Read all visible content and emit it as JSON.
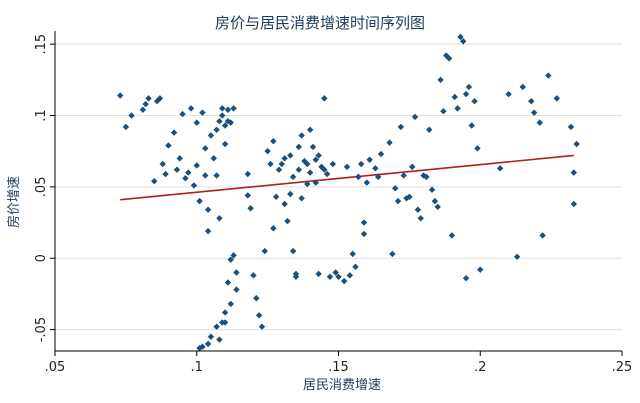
{
  "chart_data": {
    "type": "scatter",
    "title": "房价与居民消费增速时间序列图",
    "xlabel": "居民消费增速",
    "ylabel": "房价增速",
    "xlim": [
      0.05,
      0.25
    ],
    "ylim": [
      -0.065,
      0.155
    ],
    "x_ticks": [
      0.05,
      0.1,
      0.15,
      0.2,
      0.25
    ],
    "x_tick_labels": [
      ".05",
      ".1",
      ".15",
      ".2",
      ".25"
    ],
    "y_ticks": [
      -0.05,
      0,
      0.05,
      0.1,
      0.15
    ],
    "y_tick_labels": [
      "-.05",
      "0",
      ".05",
      ".1",
      ".15"
    ],
    "grid": true,
    "legend": "none",
    "colors": {
      "points": "#1c4f7a",
      "fit_line": "#b01e1e",
      "grid": "#e0e0e0",
      "axis": "#000000",
      "title": "#1c3a5c"
    },
    "points": [
      [
        0.073,
        0.114
      ],
      [
        0.075,
        0.092
      ],
      [
        0.077,
        0.1
      ],
      [
        0.081,
        0.104
      ],
      [
        0.082,
        0.108
      ],
      [
        0.083,
        0.112
      ],
      [
        0.085,
        0.054
      ],
      [
        0.086,
        0.11
      ],
      [
        0.087,
        0.112
      ],
      [
        0.088,
        0.066
      ],
      [
        0.089,
        0.059
      ],
      [
        0.09,
        0.079
      ],
      [
        0.092,
        0.088
      ],
      [
        0.093,
        0.062
      ],
      [
        0.094,
        0.07
      ],
      [
        0.095,
        0.101
      ],
      [
        0.096,
        0.056
      ],
      [
        0.097,
        0.06
      ],
      [
        0.098,
        0.105
      ],
      [
        0.099,
        0.051
      ],
      [
        0.1,
        0.095
      ],
      [
        0.1,
        0.065
      ],
      [
        0.101,
        0.04
      ],
      [
        0.102,
        0.102
      ],
      [
        0.103,
        0.077
      ],
      [
        0.103,
        0.058
      ],
      [
        0.104,
        0.034
      ],
      [
        0.104,
        0.019
      ],
      [
        0.105,
        0.086
      ],
      [
        0.106,
        0.07
      ],
      [
        0.107,
        0.09
      ],
      [
        0.107,
        0.058
      ],
      [
        0.108,
        0.096
      ],
      [
        0.108,
        0.028
      ],
      [
        0.109,
        0.1
      ],
      [
        0.109,
        0.105
      ],
      [
        0.11,
        0.093
      ],
      [
        0.11,
        0.08
      ],
      [
        0.111,
        0.104
      ],
      [
        0.111,
        0.096
      ],
      [
        0.112,
        0.095
      ],
      [
        0.113,
        0.105
      ],
      [
        0.112,
        -0.001
      ],
      [
        0.113,
        0.002
      ],
      [
        0.114,
        -0.01
      ],
      [
        0.114,
        -0.022
      ],
      [
        0.112,
        -0.032
      ],
      [
        0.11,
        -0.038
      ],
      [
        0.109,
        -0.045
      ],
      [
        0.107,
        -0.048
      ],
      [
        0.105,
        -0.055
      ],
      [
        0.104,
        -0.06
      ],
      [
        0.102,
        -0.062
      ],
      [
        0.101,
        -0.063
      ],
      [
        0.108,
        -0.057
      ],
      [
        0.11,
        -0.045
      ],
      [
        0.111,
        -0.017
      ],
      [
        0.118,
        0.059
      ],
      [
        0.118,
        0.044
      ],
      [
        0.119,
        0.035
      ],
      [
        0.12,
        -0.012
      ],
      [
        0.121,
        -0.028
      ],
      [
        0.122,
        -0.04
      ],
      [
        0.123,
        -0.048
      ],
      [
        0.124,
        0.005
      ],
      [
        0.125,
        0.075
      ],
      [
        0.126,
        0.066
      ],
      [
        0.127,
        0.082
      ],
      [
        0.127,
        0.021
      ],
      [
        0.128,
        0.043
      ],
      [
        0.129,
        0.062
      ],
      [
        0.13,
        0.066
      ],
      [
        0.131,
        0.07
      ],
      [
        0.131,
        0.038
      ],
      [
        0.132,
        0.026
      ],
      [
        0.133,
        0.072
      ],
      [
        0.133,
        0.045
      ],
      [
        0.134,
        0.057
      ],
      [
        0.134,
        0.005
      ],
      [
        0.135,
        -0.011
      ],
      [
        0.135,
        -0.013
      ],
      [
        0.136,
        0.078
      ],
      [
        0.136,
        0.062
      ],
      [
        0.137,
        0.086
      ],
      [
        0.137,
        0.042
      ],
      [
        0.138,
        0.068
      ],
      [
        0.139,
        0.052
      ],
      [
        0.139,
        0.066
      ],
      [
        0.14,
        0.09
      ],
      [
        0.14,
        0.06
      ],
      [
        0.141,
        0.078
      ],
      [
        0.142,
        0.053
      ],
      [
        0.142,
        0.069
      ],
      [
        0.143,
        0.072
      ],
      [
        0.143,
        -0.011
      ],
      [
        0.144,
        0.064
      ],
      [
        0.145,
        0.062
      ],
      [
        0.145,
        0.112
      ],
      [
        0.146,
        0.059
      ],
      [
        0.147,
        -0.013
      ],
      [
        0.148,
        0.066
      ],
      [
        0.149,
        -0.01
      ],
      [
        0.15,
        -0.013
      ],
      [
        0.152,
        -0.016
      ],
      [
        0.153,
        0.064
      ],
      [
        0.154,
        -0.012
      ],
      [
        0.155,
        0.003
      ],
      [
        0.156,
        -0.006
      ],
      [
        0.157,
        0.057
      ],
      [
        0.158,
        0.066
      ],
      [
        0.159,
        0.025
      ],
      [
        0.159,
        0.017
      ],
      [
        0.16,
        0.053
      ],
      [
        0.161,
        0.069
      ],
      [
        0.163,
        0.063
      ],
      [
        0.164,
        0.057
      ],
      [
        0.165,
        0.073
      ],
      [
        0.168,
        0.081
      ],
      [
        0.169,
        0.003
      ],
      [
        0.17,
        0.049
      ],
      [
        0.171,
        0.04
      ],
      [
        0.172,
        0.092
      ],
      [
        0.173,
        0.058
      ],
      [
        0.174,
        0.042
      ],
      [
        0.175,
        0.043
      ],
      [
        0.176,
        0.064
      ],
      [
        0.177,
        0.099
      ],
      [
        0.178,
        0.034
      ],
      [
        0.179,
        0.028
      ],
      [
        0.18,
        0.058
      ],
      [
        0.181,
        0.057
      ],
      [
        0.182,
        0.09
      ],
      [
        0.183,
        0.048
      ],
      [
        0.184,
        0.04
      ],
      [
        0.185,
        0.036
      ],
      [
        0.186,
        0.125
      ],
      [
        0.187,
        0.103
      ],
      [
        0.188,
        0.142
      ],
      [
        0.189,
        0.14
      ],
      [
        0.19,
        0.016
      ],
      [
        0.191,
        0.113
      ],
      [
        0.192,
        0.105
      ],
      [
        0.193,
        0.155
      ],
      [
        0.194,
        0.152
      ],
      [
        0.195,
        0.115
      ],
      [
        0.196,
        0.12
      ],
      [
        0.197,
        0.093
      ],
      [
        0.198,
        0.11
      ],
      [
        0.199,
        0.077
      ],
      [
        0.2,
        -0.008
      ],
      [
        0.195,
        -0.014
      ],
      [
        0.207,
        0.063
      ],
      [
        0.21,
        0.115
      ],
      [
        0.213,
        0.001
      ],
      [
        0.215,
        0.12
      ],
      [
        0.218,
        0.11
      ],
      [
        0.219,
        0.102
      ],
      [
        0.221,
        0.095
      ],
      [
        0.222,
        0.016
      ],
      [
        0.224,
        0.128
      ],
      [
        0.227,
        0.112
      ],
      [
        0.232,
        0.092
      ],
      [
        0.233,
        0.06
      ],
      [
        0.233,
        0.038
      ],
      [
        0.234,
        0.08
      ]
    ],
    "fit_line": [
      [
        0.073,
        0.041
      ],
      [
        0.233,
        0.072
      ]
    ]
  }
}
